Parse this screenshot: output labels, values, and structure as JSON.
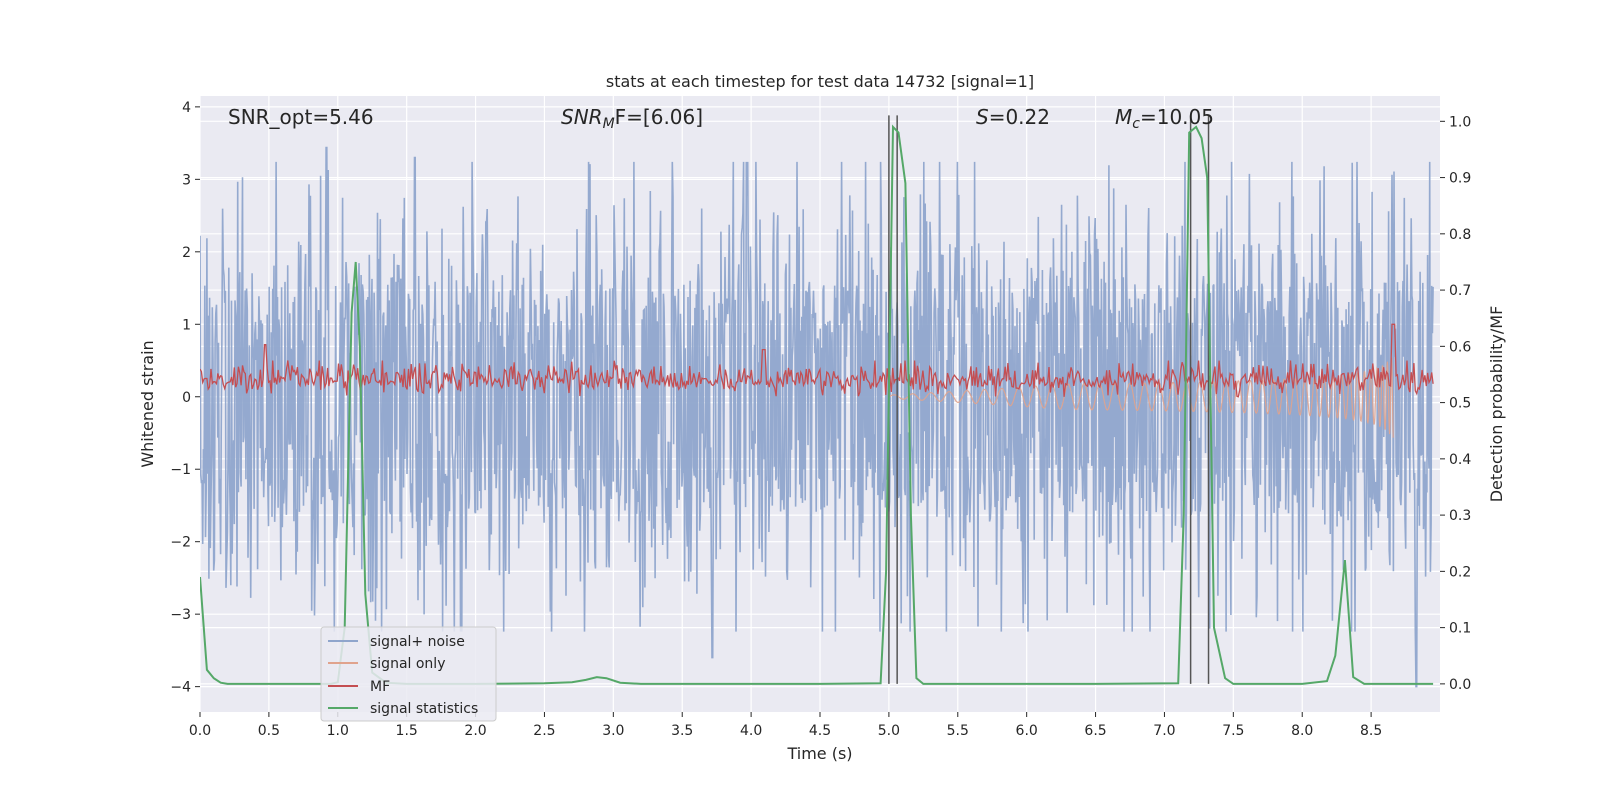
{
  "chart_data": {
    "type": "line",
    "title": "stats at each timestep for test data 14732 [signal=1]",
    "xlabel": "Time (s)",
    "ylabel": "Whitened strain",
    "ylabel_right": "Detection probability/MF",
    "xlim": [
      0.0,
      9.0
    ],
    "ylim": [
      -4.35,
      4.15
    ],
    "ylim_right": [
      -0.05,
      1.045
    ],
    "x_ticks": [
      "0.0",
      "0.5",
      "1.0",
      "1.5",
      "2.0",
      "2.5",
      "3.0",
      "3.5",
      "4.0",
      "4.5",
      "5.0",
      "5.5",
      "6.0",
      "6.5",
      "7.0",
      "7.5",
      "8.0",
      "8.5"
    ],
    "y_ticks": [
      "−4",
      "−3",
      "−2",
      "−1",
      "0",
      "1",
      "2",
      "3",
      "4"
    ],
    "y_ticks_right": [
      "0.0",
      "0.1",
      "0.2",
      "0.3",
      "0.4",
      "0.5",
      "0.6",
      "0.7",
      "0.8",
      "0.9",
      "1.0"
    ],
    "grid": true,
    "annotations": {
      "snr_opt": "SNR_opt=5.46",
      "snr_mf_var": "SNR",
      "snr_mf_sub": "M",
      "snr_mf_rest": "F=[6.06]",
      "s_var": "S",
      "s_rest": "=0.22",
      "mc_var": "M",
      "mc_sub": "c",
      "mc_rest": "=10.05"
    },
    "legend": {
      "position": "lower-left",
      "entries": [
        "signal+ noise",
        "signal only",
        "MF",
        "signal statistics"
      ]
    },
    "colors": {
      "noise": "#8fa5cc",
      "signal": "#e0a38d",
      "mf": "#c44e52",
      "stat": "#55a868",
      "vline": "#555555",
      "bg": "#eaeaf2",
      "grid": "#ffffff"
    },
    "vertical_lines_x": [
      5.0,
      5.06,
      7.19,
      7.32
    ],
    "series": [
      {
        "name": "signal statistics",
        "axis": "right",
        "x": [
          0.0,
          0.05,
          0.1,
          0.15,
          0.2,
          0.5,
          0.95,
          1.0,
          1.05,
          1.1,
          1.13,
          1.16,
          1.2,
          1.25,
          1.35,
          1.5,
          2.0,
          2.5,
          2.7,
          2.8,
          2.88,
          2.95,
          3.05,
          3.2,
          4.0,
          4.5,
          4.94,
          4.98,
          5.03,
          5.07,
          5.12,
          5.16,
          5.2,
          5.25,
          5.4,
          6.0,
          6.5,
          7.1,
          7.14,
          7.18,
          7.23,
          7.27,
          7.31,
          7.36,
          7.44,
          7.5,
          8.0,
          8.18,
          8.24,
          8.31,
          8.37,
          8.45,
          8.6,
          8.95
        ],
        "values": [
          0.19,
          0.025,
          0.01,
          0.002,
          0.0,
          0.0,
          0.0,
          0.003,
          0.1,
          0.66,
          0.75,
          0.6,
          0.16,
          0.02,
          0.002,
          0.0,
          0.0,
          0.001,
          0.003,
          0.007,
          0.012,
          0.01,
          0.002,
          0.0,
          0.0,
          0.0,
          0.001,
          0.2,
          0.99,
          0.98,
          0.89,
          0.3,
          0.01,
          0.0,
          0.0,
          0.0,
          0.0,
          0.001,
          0.3,
          0.98,
          0.99,
          0.97,
          0.9,
          0.1,
          0.01,
          0.0,
          0.0,
          0.005,
          0.05,
          0.22,
          0.012,
          0.0,
          0.0,
          0.0
        ]
      },
      {
        "name": "MF",
        "axis": "left",
        "x_start": 0.0,
        "x_end": 8.95,
        "n_points": 900,
        "baseline": 0.18,
        "typical_range": [
          0.0,
          0.5
        ],
        "peaks": [
          {
            "x": 0.47,
            "value": 0.72
          },
          {
            "x": 4.09,
            "value": 0.65
          },
          {
            "x": 8.66,
            "value": 1.0
          }
        ]
      },
      {
        "name": "signal+ noise",
        "axis": "left",
        "x_start": 0.0,
        "x_end": 8.95,
        "n_points": 1800,
        "typical_range": [
          -2.4,
          2.4
        ],
        "extremes": [
          {
            "x": 0.92,
            "value": 3.44
          },
          {
            "x": 1.56,
            "value": 3.3
          },
          {
            "x": 3.72,
            "value": -3.6
          },
          {
            "x": 8.83,
            "value": -4.0
          }
        ]
      },
      {
        "name": "signal only",
        "axis": "left",
        "x_start": 5.0,
        "x_end": 8.66,
        "peak_amplitude": 0.6
      }
    ]
  }
}
